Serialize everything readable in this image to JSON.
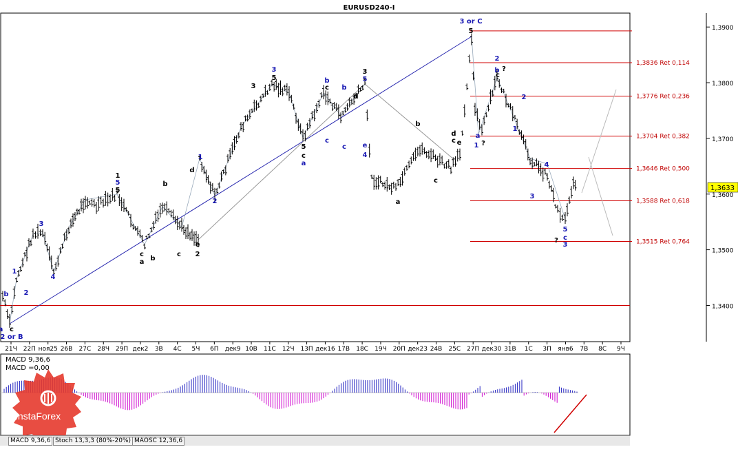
{
  "window": {
    "title": "EURUSD240-I"
  },
  "indicator": {
    "macd_line1": "MACD 9,36,6",
    "macd_line2": "MACD =0,00"
  },
  "tabs": [
    {
      "label": "MACD 9,36,6",
      "active": true
    },
    {
      "label": "Stoch 13,3,3 (80%-20%)",
      "active": false
    },
    {
      "label": "MAOSC 12,36,6",
      "active": false
    }
  ],
  "logo": {
    "text": "InstaForex"
  },
  "colors": {
    "fib": "#d00000",
    "wave_blue": "#1a1ab4",
    "macd_hist": "#cc00cc",
    "macd_pos": "#2020c0"
  },
  "chart_data": {
    "type": "candlestick",
    "title": "EURUSD240-I",
    "y_ticks": [
      "1,3900",
      "1,3800",
      "1,3700",
      "1,3600",
      "1,3500",
      "1,3400"
    ],
    "y_values": [
      1.39,
      1.38,
      1.37,
      1.36,
      1.35,
      1.34
    ],
    "ylim": [
      1.3335,
      1.3925
    ],
    "current_price": "1,3633",
    "x_ticks": [
      "21Ч",
      "22П",
      "ноя25",
      "26В",
      "27С",
      "28Ч",
      "29П",
      "дек2",
      "3В",
      "4С",
      "5Ч",
      "6П",
      "дек9",
      "10В",
      "11С",
      "12Ч",
      "13П",
      "дек16",
      "17В",
      "18С",
      "19Ч",
      "20П",
      "дек23",
      "24В",
      "25С",
      "27П",
      "дек30",
      "31В",
      "1С",
      "3П",
      "янв6",
      "7В",
      "8С",
      "9Ч"
    ],
    "fib_levels": [
      {
        "price": 1.3836,
        "label": "1,3836 Ret 0,114"
      },
      {
        "price": 1.3776,
        "label": "1,3776 Ret 0,236"
      },
      {
        "price": 1.3704,
        "label": "1,3704 Ret 0,382"
      },
      {
        "price": 1.3646,
        "label": "1,3646 Ret 0,500"
      },
      {
        "price": 1.3588,
        "label": "1,3588 Ret 0,618"
      },
      {
        "price": 1.3515,
        "label": "1,3515 Ret 0,764"
      }
    ],
    "top_line": 1.3893,
    "bottom_line": 1.34,
    "wave_labels": [
      {
        "t": "3 or C",
        "x": 684,
        "y": 34,
        "c": "blue"
      },
      {
        "t": "5",
        "x": 684,
        "y": 48,
        "c": "blk"
      },
      {
        "t": "2",
        "x": 722,
        "y": 88,
        "c": "blue"
      },
      {
        "t": "b",
        "x": 722,
        "y": 105,
        "c": "blue"
      },
      {
        "t": "?",
        "x": 732,
        "y": 103,
        "c": "blk"
      },
      {
        "t": "c",
        "x": 723,
        "y": 112,
        "c": "blk"
      },
      {
        "t": "2",
        "x": 761,
        "y": 144,
        "c": "blue"
      },
      {
        "t": "1",
        "x": 748,
        "y": 190,
        "c": "blue"
      },
      {
        "t": "a",
        "x": 694,
        "y": 200,
        "c": "blue"
      },
      {
        "t": "1",
        "x": 692,
        "y": 214,
        "c": "blue"
      },
      {
        "t": "?",
        "x": 702,
        "y": 211,
        "c": "blk"
      },
      {
        "t": "4",
        "x": 794,
        "y": 242,
        "c": "blue"
      },
      {
        "t": "3",
        "x": 773,
        "y": 288,
        "c": "blue"
      },
      {
        "t": "5",
        "x": 821,
        "y": 336,
        "c": "blue"
      },
      {
        "t": "c",
        "x": 821,
        "y": 348,
        "c": "blue"
      },
      {
        "t": "?",
        "x": 808,
        "y": 352,
        "c": "blk"
      },
      {
        "t": "3",
        "x": 821,
        "y": 358,
        "c": "blue"
      },
      {
        "t": "d",
        "x": 659,
        "y": 197,
        "c": "blk"
      },
      {
        "t": "c",
        "x": 659,
        "y": 207,
        "c": "blk"
      },
      {
        "t": "e",
        "x": 667,
        "y": 210,
        "c": "blk"
      },
      {
        "t": "b",
        "x": 607,
        "y": 183,
        "c": "blk"
      },
      {
        "t": "c",
        "x": 633,
        "y": 265,
        "c": "blk"
      },
      {
        "t": "a",
        "x": 578,
        "y": 296,
        "c": "blk"
      },
      {
        "t": "3",
        "x": 530,
        "y": 107,
        "c": "blk"
      },
      {
        "t": "5",
        "x": 530,
        "y": 118,
        "c": "blue"
      },
      {
        "t": "4",
        "x": 530,
        "y": 228,
        "c": "blue"
      },
      {
        "t": "e",
        "x": 530,
        "y": 214,
        "c": "blue"
      },
      {
        "t": "d",
        "x": 517,
        "y": 143,
        "c": "blk"
      },
      {
        "t": "b",
        "x": 475,
        "y": 120,
        "c": "blue"
      },
      {
        "t": "c",
        "x": 475,
        "y": 130,
        "c": "blk"
      },
      {
        "t": "b",
        "x": 500,
        "y": 130,
        "c": "blue"
      },
      {
        "t": "c",
        "x": 500,
        "y": 216,
        "c": "blue"
      },
      {
        "t": "c",
        "x": 475,
        "y": 207,
        "c": "blue"
      },
      {
        "t": "3",
        "x": 398,
        "y": 104,
        "c": "blue"
      },
      {
        "t": "5",
        "x": 398,
        "y": 116,
        "c": "blk"
      },
      {
        "t": "3",
        "x": 368,
        "y": 128,
        "c": "blk"
      },
      {
        "t": "5",
        "x": 441,
        "y": 216,
        "c": "blk"
      },
      {
        "t": "c",
        "x": 441,
        "y": 229,
        "c": "blk"
      },
      {
        "t": "a",
        "x": 441,
        "y": 240,
        "c": "blue"
      },
      {
        "t": "2",
        "x": 312,
        "y": 295,
        "c": "blue"
      },
      {
        "t": "1",
        "x": 291,
        "y": 231,
        "c": "blue"
      },
      {
        "t": "d",
        "x": 279,
        "y": 250,
        "c": "blk"
      },
      {
        "t": "e",
        "x": 287,
        "y": 358,
        "c": "blk"
      },
      {
        "t": "2",
        "x": 287,
        "y": 372,
        "c": "blk"
      },
      {
        "t": "b",
        "x": 240,
        "y": 270,
        "c": "blk"
      },
      {
        "t": "c",
        "x": 260,
        "y": 372,
        "c": "blk"
      },
      {
        "t": "c",
        "x": 206,
        "y": 372,
        "c": "blk"
      },
      {
        "t": "a",
        "x": 206,
        "y": 383,
        "c": "blk"
      },
      {
        "t": "b",
        "x": 222,
        "y": 378,
        "c": "blk"
      },
      {
        "t": "1",
        "x": 171,
        "y": 258,
        "c": "blk"
      },
      {
        "t": "5",
        "x": 171,
        "y": 268,
        "c": "blue"
      },
      {
        "t": "5",
        "x": 171,
        "y": 279,
        "c": "blk"
      },
      {
        "t": "3",
        "x": 60,
        "y": 328,
        "c": "blue"
      },
      {
        "t": "4",
        "x": 77,
        "y": 405,
        "c": "blue"
      },
      {
        "t": "1",
        "x": 21,
        "y": 397,
        "c": "blue"
      },
      {
        "t": "2",
        "x": 38,
        "y": 428,
        "c": "blue"
      },
      {
        "t": "b",
        "x": 9,
        "y": 430,
        "c": "blue"
      },
      {
        "t": "c",
        "x": 17,
        "y": 481,
        "c": "blk"
      },
      {
        "t": "a",
        "x": 1,
        "y": 481,
        "c": "blue"
      },
      {
        "t": "2 or B",
        "x": 17,
        "y": 492,
        "c": "blue"
      }
    ]
  }
}
